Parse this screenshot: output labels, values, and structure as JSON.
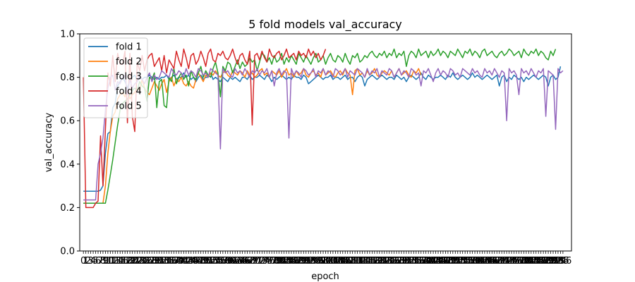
{
  "chart_data": {
    "type": "line",
    "title": "5 fold models val_accuracy",
    "xlabel": "epoch",
    "ylabel": "val_accuracy",
    "ylim": [
      0.0,
      1.0
    ],
    "yticks": [
      0.0,
      0.2,
      0.4,
      0.6,
      0.8,
      1.0
    ],
    "ytick_labels": [
      "0.0",
      "0.2",
      "0.4",
      "0.6",
      "0.8",
      "1.0"
    ],
    "xlim": [
      -1.5,
      199.5
    ],
    "legend_position": "top-left",
    "series": [
      {
        "name": "fold 1",
        "color": "#1f77b4",
        "values": [
          0.275,
          0.275,
          0.275,
          0.275,
          0.275,
          0.275,
          0.275,
          0.28,
          0.3,
          0.45,
          0.54,
          0.55,
          0.66,
          0.68,
          0.76,
          0.78,
          0.8,
          0.78,
          0.75,
          0.79,
          0.8,
          0.81,
          0.78,
          0.8,
          0.79,
          0.8,
          0.8,
          0.81,
          0.8,
          0.79,
          0.8,
          0.79,
          0.8,
          0.8,
          0.81,
          0.79,
          0.8,
          0.81,
          0.79,
          0.8,
          0.8,
          0.82,
          0.8,
          0.81,
          0.79,
          0.8,
          0.78,
          0.8,
          0.81,
          0.79,
          0.8,
          0.8,
          0.82,
          0.79,
          0.8,
          0.79,
          0.78,
          0.8,
          0.79,
          0.78,
          0.8,
          0.79,
          0.8,
          0.79,
          0.78,
          0.8,
          0.8,
          0.79,
          0.81,
          0.79,
          0.8,
          0.8,
          0.81,
          0.8,
          0.79,
          0.81,
          0.8,
          0.78,
          0.8,
          0.79,
          0.8,
          0.81,
          0.8,
          0.79,
          0.8,
          0.79,
          0.81,
          0.8,
          0.8,
          0.79,
          0.81,
          0.8,
          0.77,
          0.78,
          0.79,
          0.8,
          0.81,
          0.8,
          0.79,
          0.8,
          0.8,
          0.81,
          0.79,
          0.8,
          0.8,
          0.79,
          0.8,
          0.81,
          0.79,
          0.8,
          0.8,
          0.78,
          0.8,
          0.81,
          0.8,
          0.76,
          0.79,
          0.8,
          0.81,
          0.8,
          0.79,
          0.8,
          0.81,
          0.8,
          0.79,
          0.8,
          0.8,
          0.79,
          0.81,
          0.8,
          0.79,
          0.8,
          0.78,
          0.8,
          0.81,
          0.8,
          0.79,
          0.8,
          0.82,
          0.8,
          0.79,
          0.81,
          0.8,
          0.79,
          0.8,
          0.8,
          0.81,
          0.8,
          0.79,
          0.81,
          0.8,
          0.82,
          0.8,
          0.79,
          0.8,
          0.81,
          0.8,
          0.79,
          0.8,
          0.82,
          0.8,
          0.81,
          0.8,
          0.79,
          0.8,
          0.81,
          0.8,
          0.79,
          0.8,
          0.81,
          0.76,
          0.8,
          0.81,
          0.78,
          0.8,
          0.79,
          0.81,
          0.8,
          0.79,
          0.8,
          0.78,
          0.8,
          0.79,
          0.8,
          0.81,
          0.8,
          0.79,
          0.8,
          0.81,
          0.8,
          0.76,
          0.8,
          0.81,
          0.79,
          0.8,
          0.85
        ]
      },
      {
        "name": "fold 2",
        "color": "#ff7f0e",
        "values": [
          0.22,
          0.22,
          0.22,
          0.22,
          0.22,
          0.22,
          0.22,
          0.22,
          0.22,
          0.3,
          0.45,
          0.55,
          0.62,
          0.64,
          0.7,
          0.72,
          0.73,
          0.71,
          0.74,
          0.7,
          0.72,
          0.73,
          0.75,
          0.74,
          0.79,
          0.75,
          0.73,
          0.72,
          0.75,
          0.78,
          0.76,
          0.74,
          0.77,
          0.79,
          0.73,
          0.78,
          0.8,
          0.76,
          0.79,
          0.78,
          0.8,
          0.77,
          0.76,
          0.78,
          0.76,
          0.75,
          0.79,
          0.82,
          0.8,
          0.78,
          0.81,
          0.8,
          0.82,
          0.81,
          0.83,
          0.81,
          0.8,
          0.82,
          0.83,
          0.81,
          0.8,
          0.83,
          0.82,
          0.81,
          0.83,
          0.82,
          0.8,
          0.83,
          0.81,
          0.82,
          0.8,
          0.81,
          0.83,
          0.84,
          0.81,
          0.82,
          0.8,
          0.83,
          0.82,
          0.81,
          0.83,
          0.8,
          0.82,
          0.84,
          0.81,
          0.82,
          0.8,
          0.83,
          0.81,
          0.82,
          0.84,
          0.81,
          0.8,
          0.82,
          0.83,
          0.81,
          0.82,
          0.8,
          0.84,
          0.81,
          0.82,
          0.83,
          0.81,
          0.8,
          0.82,
          0.83,
          0.81,
          0.84,
          0.82,
          0.81,
          0.72,
          0.83,
          0.84,
          0.81,
          0.82,
          0.8,
          0.83,
          0.81,
          0.82,
          0.84,
          0.81,
          0.8,
          0.82,
          0.83,
          0.82,
          0.81,
          0.83,
          0.8,
          0.82,
          0.84,
          0.81,
          0.82,
          0.83,
          0.81,
          0.8,
          0.83,
          0.82,
          0.84,
          0.81
        ]
      },
      {
        "name": "fold 3",
        "color": "#2ca02c",
        "values": [
          0.22,
          0.22,
          0.22,
          0.22,
          0.22,
          0.22,
          0.22,
          0.22,
          0.22,
          0.22,
          0.28,
          0.35,
          0.42,
          0.5,
          0.58,
          0.65,
          0.68,
          0.69,
          0.7,
          0.72,
          0.74,
          0.75,
          0.74,
          0.78,
          0.76,
          0.75,
          0.69,
          0.8,
          0.79,
          0.82,
          0.66,
          0.78,
          0.79,
          0.67,
          0.66,
          0.8,
          0.78,
          0.84,
          0.77,
          0.8,
          0.82,
          0.79,
          0.81,
          0.76,
          0.83,
          0.8,
          0.79,
          0.82,
          0.85,
          0.8,
          0.83,
          0.81,
          0.8,
          0.84,
          0.87,
          0.82,
          0.71,
          0.85,
          0.83,
          0.87,
          0.86,
          0.82,
          0.85,
          0.88,
          0.84,
          0.87,
          0.85,
          0.86,
          0.89,
          0.87,
          0.88,
          0.83,
          0.87,
          0.91,
          0.9,
          0.87,
          0.89,
          0.86,
          0.9,
          0.87,
          0.88,
          0.91,
          0.86,
          0.89,
          0.87,
          0.9,
          0.88,
          0.86,
          0.91,
          0.89,
          0.87,
          0.9,
          0.88,
          0.86,
          0.89,
          0.91,
          0.87,
          0.88,
          0.9,
          0.86,
          0.89,
          0.91,
          0.88,
          0.87,
          0.9,
          0.89,
          0.87,
          0.91,
          0.88,
          0.86,
          0.9,
          0.89,
          0.91,
          0.87,
          0.88,
          0.9,
          0.89,
          0.91,
          0.92,
          0.9,
          0.89,
          0.91,
          0.9,
          0.92,
          0.89,
          0.91,
          0.9,
          0.93,
          0.89,
          0.91,
          0.9,
          0.92,
          0.85,
          0.9,
          0.92,
          0.91,
          0.89,
          0.93,
          0.9,
          0.91,
          0.92,
          0.89,
          0.92,
          0.9,
          0.91,
          0.93,
          0.9,
          0.92,
          0.91,
          0.89,
          0.92,
          0.91,
          0.9,
          0.93,
          0.91,
          0.89,
          0.92,
          0.91,
          0.93,
          0.9,
          0.92,
          0.91,
          0.89,
          0.92,
          0.93,
          0.9,
          0.91,
          0.92,
          0.9,
          0.89,
          0.91,
          0.92,
          0.9,
          0.91,
          0.93,
          0.92,
          0.9,
          0.91,
          0.92,
          0.89,
          0.93,
          0.91,
          0.9,
          0.92,
          0.91,
          0.93,
          0.9,
          0.92,
          0.91,
          0.89,
          0.88,
          0.92,
          0.9,
          0.93
        ]
      },
      {
        "name": "fold 4",
        "color": "#d62728",
        "values": [
          0.8,
          0.2,
          0.2,
          0.2,
          0.2,
          0.22,
          0.23,
          0.53,
          0.3,
          0.56,
          0.82,
          0.76,
          0.9,
          0.78,
          0.91,
          0.86,
          0.86,
          0.92,
          0.59,
          0.91,
          0.62,
          0.55,
          0.87,
          0.83,
          0.9,
          0.83,
          0.88,
          0.9,
          0.91,
          0.85,
          0.87,
          0.89,
          0.83,
          0.9,
          0.82,
          0.88,
          0.86,
          0.84,
          0.92,
          0.88,
          0.85,
          0.93,
          0.89,
          0.84,
          0.9,
          0.91,
          0.86,
          0.88,
          0.92,
          0.89,
          0.85,
          0.91,
          0.93,
          0.88,
          0.87,
          0.91,
          0.9,
          0.92,
          0.89,
          0.88,
          0.9,
          0.93,
          0.89,
          0.86,
          0.9,
          0.91,
          0.88,
          0.86,
          0.92,
          0.58,
          0.9,
          0.91,
          0.88,
          0.92,
          0.89,
          0.87,
          0.93,
          0.9,
          0.89,
          0.91,
          0.92,
          0.88,
          0.9,
          0.93,
          0.89,
          0.9,
          0.91,
          0.88,
          0.92,
          0.9,
          0.91,
          0.89,
          0.93,
          0.9,
          0.92,
          0.89,
          0.91,
          0.88,
          0.9,
          0.93
        ]
      },
      {
        "name": "fold 5",
        "color": "#9467bd",
        "values": [
          0.235,
          0.235,
          0.235,
          0.235,
          0.235,
          0.235,
          0.4,
          0.45,
          0.52,
          0.65,
          0.75,
          0.8,
          0.81,
          0.74,
          0.78,
          0.77,
          0.8,
          0.81,
          0.72,
          0.79,
          0.75,
          0.77,
          0.78,
          0.81,
          0.79,
          0.77,
          0.8,
          0.82,
          0.78,
          0.81,
          0.79,
          0.8,
          0.83,
          0.82,
          0.81,
          0.8,
          0.84,
          0.82,
          0.81,
          0.83,
          0.82,
          0.8,
          0.84,
          0.81,
          0.83,
          0.82,
          0.8,
          0.84,
          0.83,
          0.81,
          0.82,
          0.8,
          0.84,
          0.83,
          0.82,
          0.81,
          0.47,
          0.84,
          0.82,
          0.83,
          0.81,
          0.8,
          0.84,
          0.82,
          0.83,
          0.81,
          0.84,
          0.82,
          0.8,
          0.83,
          0.82,
          0.84,
          0.81,
          0.83,
          0.82,
          0.84,
          0.8,
          0.83,
          0.76,
          0.82,
          0.84,
          0.81,
          0.83,
          0.82,
          0.52,
          0.84,
          0.81,
          0.83,
          0.82,
          0.8,
          0.84,
          0.83,
          0.81,
          0.82,
          0.84,
          0.8,
          0.83,
          0.82,
          0.84,
          0.81,
          0.83,
          0.82,
          0.8,
          0.84,
          0.83,
          0.81,
          0.82,
          0.84,
          0.8,
          0.83,
          0.82,
          0.81,
          0.84,
          0.83,
          0.82,
          0.8,
          0.84,
          0.81,
          0.83,
          0.82,
          0.84,
          0.8,
          0.83,
          0.82,
          0.81,
          0.84,
          0.83,
          0.8,
          0.82,
          0.84,
          0.81,
          0.83,
          0.82,
          0.8,
          0.84,
          0.83,
          0.81,
          0.82,
          0.76,
          0.83,
          0.82,
          0.84,
          0.81,
          0.78,
          0.82,
          0.84,
          0.81,
          0.83,
          0.82,
          0.8,
          0.84,
          0.83,
          0.81,
          0.82,
          0.8,
          0.84,
          0.83,
          0.82,
          0.81,
          0.84,
          0.82,
          0.83,
          0.81,
          0.8,
          0.84,
          0.82,
          0.83,
          0.81,
          0.84,
          0.82,
          0.8,
          0.83,
          0.82,
          0.6,
          0.84,
          0.82,
          0.83,
          0.81,
          0.72,
          0.84,
          0.82,
          0.83,
          0.81,
          0.84,
          0.82,
          0.8,
          0.83,
          0.82,
          0.84,
          0.62,
          0.83,
          0.82,
          0.81,
          0.56,
          0.84,
          0.82,
          0.83
        ]
      }
    ]
  }
}
